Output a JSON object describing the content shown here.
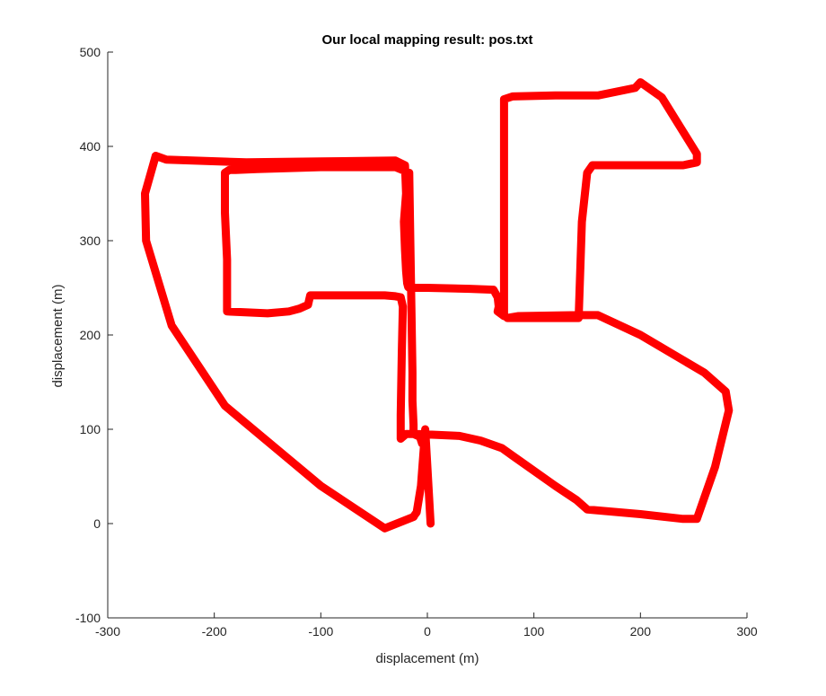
{
  "chart_data": {
    "type": "line",
    "title": "Our local mapping result: pos.txt",
    "xlabel": "displacement (m)",
    "ylabel": "displacement (m)",
    "xlim": [
      -300,
      300
    ],
    "ylim": [
      -100,
      500
    ],
    "xticks": [
      -300,
      -200,
      -100,
      0,
      100,
      200,
      300
    ],
    "yticks": [
      -100,
      0,
      100,
      200,
      300,
      400,
      500
    ],
    "grid": false,
    "legend": "none",
    "series": [
      {
        "color": "#ff0000",
        "x": [
          3,
          -2,
          -6,
          -10,
          -12,
          -13,
          -40,
          -100,
          -190,
          -240,
          -264,
          -265,
          -255,
          -245,
          -170,
          -100,
          -30,
          -21,
          -20,
          -22,
          -21,
          -20,
          -19,
          -18,
          -17,
          -16,
          -15,
          -12,
          0,
          40,
          62,
          66,
          67,
          66,
          72,
          72,
          80,
          120,
          160,
          195,
          200,
          220,
          253,
          253,
          240,
          155,
          150,
          145,
          142,
          75,
          85,
          140,
          160,
          200,
          260,
          280,
          283,
          270,
          253,
          240,
          200,
          150,
          140,
          120,
          80,
          70,
          50,
          30,
          -10,
          -20,
          -25,
          -25,
          -24,
          -23,
          -25,
          -30,
          -40,
          -60,
          -80,
          -110,
          -112,
          -120,
          -130,
          -150,
          -188,
          -188,
          -190,
          -190,
          -190,
          -186,
          -180,
          -160,
          -100,
          -30,
          -17,
          -16,
          -15,
          -14,
          -14,
          -13,
          -13,
          -7,
          -5
        ],
        "y": [
          0,
          100,
          40,
          12,
          9,
          7,
          -5,
          40,
          125,
          210,
          300,
          350,
          390,
          386,
          383,
          384,
          385,
          380,
          350,
          320,
          290,
          268,
          255,
          251,
          250,
          250,
          250,
          250,
          250,
          249,
          248,
          240,
          230,
          225,
          220,
          450,
          453,
          454,
          454,
          462,
          468,
          452,
          392,
          383,
          380,
          380,
          372,
          320,
          218,
          218,
          220,
          221,
          221,
          200,
          160,
          140,
          120,
          60,
          5,
          5,
          10,
          15,
          25,
          40,
          72,
          80,
          88,
          93,
          95,
          95,
          90,
          115,
          180,
          230,
          240,
          241,
          242,
          242,
          242,
          242,
          232,
          228,
          225,
          223,
          225,
          280,
          330,
          372,
          372,
          375,
          375,
          376,
          378,
          378,
          372,
          300,
          230,
          160,
          130,
          105,
          95,
          92,
          85
        ]
      }
    ]
  }
}
